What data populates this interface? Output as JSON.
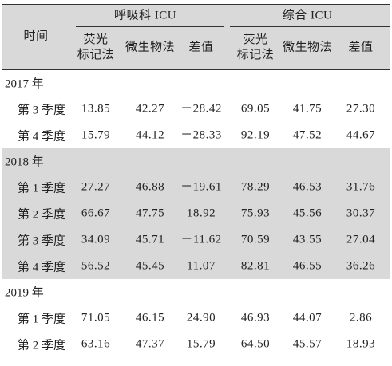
{
  "header": {
    "row_label": "时间",
    "groups": [
      {
        "label": "呼吸科 ICU",
        "columns": [
          [
            "荧光",
            "标记法"
          ],
          [
            "微生物法"
          ],
          [
            "差值"
          ]
        ]
      },
      {
        "label": "综合 ICU",
        "columns": [
          [
            "荧光",
            "标记法"
          ],
          [
            "微生物法"
          ],
          [
            "差值"
          ]
        ]
      }
    ]
  },
  "sections": [
    {
      "label": "2017 年",
      "shaded": false,
      "rows": [
        {
          "label": "第 3 季度",
          "values": [
            "13.85",
            "42.27",
            "－28.42",
            "69.05",
            "41.75",
            "27.30"
          ]
        },
        {
          "label": "第 4 季度",
          "values": [
            "15.79",
            "44.12",
            "－28.33",
            "92.19",
            "47.52",
            "44.67"
          ]
        }
      ]
    },
    {
      "label": "2018 年",
      "shaded": true,
      "rows": [
        {
          "label": "第 1 季度",
          "values": [
            "27.27",
            "46.88",
            "－19.61",
            "78.29",
            "46.53",
            "31.76"
          ]
        },
        {
          "label": "第 2 季度",
          "values": [
            "66.67",
            "47.75",
            "18.92",
            "75.93",
            "45.56",
            "30.37"
          ]
        },
        {
          "label": "第 3 季度",
          "values": [
            "34.09",
            "45.71",
            "－11.62",
            "70.59",
            "43.55",
            "27.04"
          ]
        },
        {
          "label": "第 4 季度",
          "values": [
            "56.52",
            "45.45",
            "11.07",
            "82.81",
            "46.55",
            "36.26"
          ]
        }
      ]
    },
    {
      "label": "2019 年",
      "shaded": false,
      "rows": [
        {
          "label": "第 1 季度",
          "values": [
            "71.05",
            "46.15",
            "24.90",
            "46.93",
            "44.07",
            "2.86"
          ]
        },
        {
          "label": "第 2 季度",
          "values": [
            "63.16",
            "47.37",
            "15.79",
            "64.50",
            "45.57",
            "18.93"
          ]
        }
      ]
    }
  ]
}
